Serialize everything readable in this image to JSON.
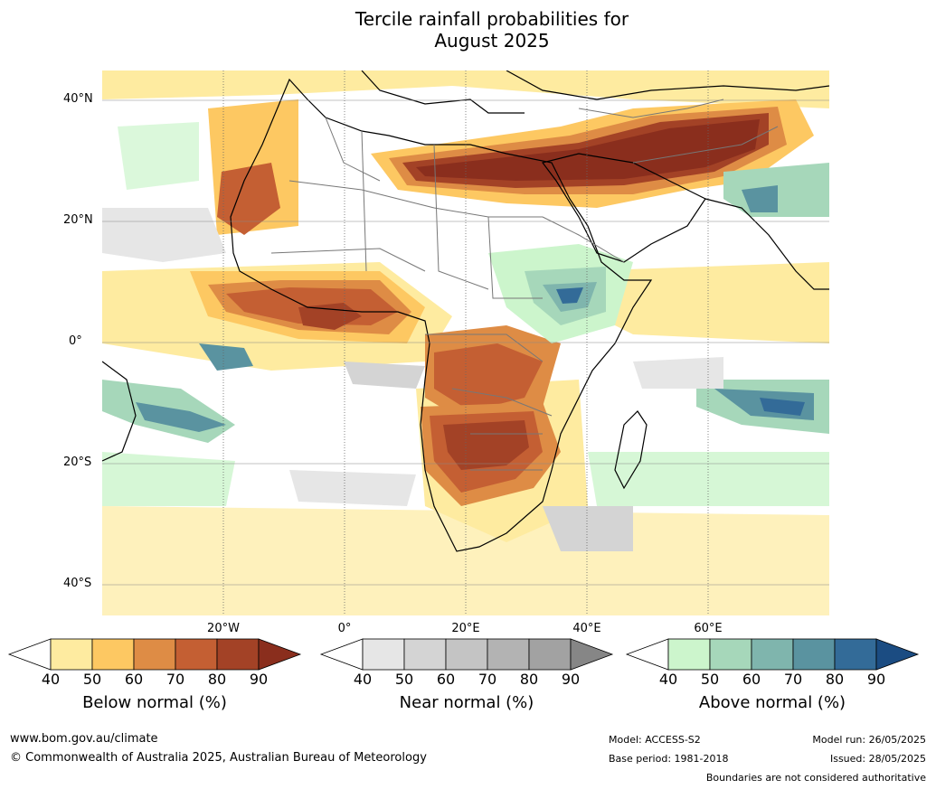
{
  "title_line1": "Tercile rainfall probabilities for",
  "title_line2": "August 2025",
  "lat_labels": [
    "40°N",
    "20°N",
    "0°",
    "20°S",
    "40°S"
  ],
  "lon_labels": [
    "20°W",
    "0°",
    "20°E",
    "40°E",
    "60°E"
  ],
  "colorbars": [
    {
      "label": "Below normal (%)",
      "ticks": [
        "40",
        "50",
        "60",
        "70",
        "80",
        "90"
      ],
      "colors": [
        "#ffffff",
        "#feeba0",
        "#fdc862",
        "#de8c45",
        "#c45f33",
        "#a34226",
        "#8a2e1d"
      ]
    },
    {
      "label": "Near normal (%)",
      "ticks": [
        "40",
        "50",
        "60",
        "70",
        "80",
        "90"
      ],
      "colors": [
        "#ffffff",
        "#e6e6e6",
        "#d4d4d4",
        "#c4c4c4",
        "#b3b3b3",
        "#a2a2a2",
        "#868686"
      ]
    },
    {
      "label": "Above normal (%)",
      "ticks": [
        "40",
        "50",
        "60",
        "70",
        "80",
        "90"
      ],
      "colors": [
        "#ffffff",
        "#ccf5cc",
        "#a6d7ba",
        "#7fb5ad",
        "#5a93a0",
        "#336b98",
        "#1b4c82"
      ]
    }
  ],
  "footer": {
    "website": "www.bom.gov.au/climate",
    "copyright": "© Commonwealth of Australia 2025, Australian Bureau of Meteorology",
    "model": "Model: ACCESS-S2",
    "base_period": "Base period: 1981-2018",
    "model_run": "Model run: 26/05/2025",
    "issued": "Issued: 28/05/2025",
    "disclaimer": "Boundaries are not considered authoritative"
  }
}
